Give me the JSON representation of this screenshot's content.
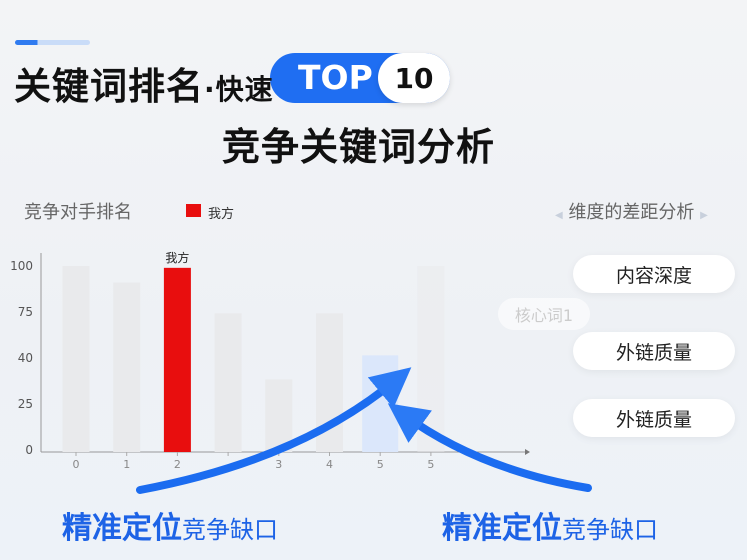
{
  "header": {
    "title_main": "关键词排名",
    "title_dot": "·快速",
    "top_label": "TOP",
    "top_number": "10",
    "subtitle": "竞争关键词分析"
  },
  "chart_data": {
    "type": "bar",
    "title": "竞争对手排名",
    "legend": [
      {
        "name": "我方",
        "color": "#e80e0e"
      }
    ],
    "y_ticks": [
      "100",
      "75",
      "40",
      "25",
      "0"
    ],
    "y_tick_values": [
      100,
      75,
      40,
      25,
      0
    ],
    "x_ticks": [
      "0",
      "1",
      "2",
      "",
      "3",
      "4",
      "5",
      "5"
    ],
    "values": [
      100,
      91,
      99,
      74,
      33,
      74,
      42,
      100
    ],
    "highlight_index": 2,
    "highlight_label": "我方",
    "gap_index": 6,
    "colors": {
      "bar": "#e9eaec",
      "highlight": "#e80e0e",
      "gap": "#dbe7fb"
    },
    "grid": false
  },
  "right_panel": {
    "title": "维度的差距分析",
    "faded_item": "核心词1",
    "items": [
      "内容深度",
      "外链质量",
      "外链质量"
    ]
  },
  "bottom": {
    "left": {
      "bold": "精准定位",
      "normal": "竞争缺口"
    },
    "right": {
      "bold": "精准定位",
      "normal": "竞争缺口"
    }
  },
  "colors": {
    "accent": "#1f6ef2",
    "red": "#e80e0e"
  }
}
